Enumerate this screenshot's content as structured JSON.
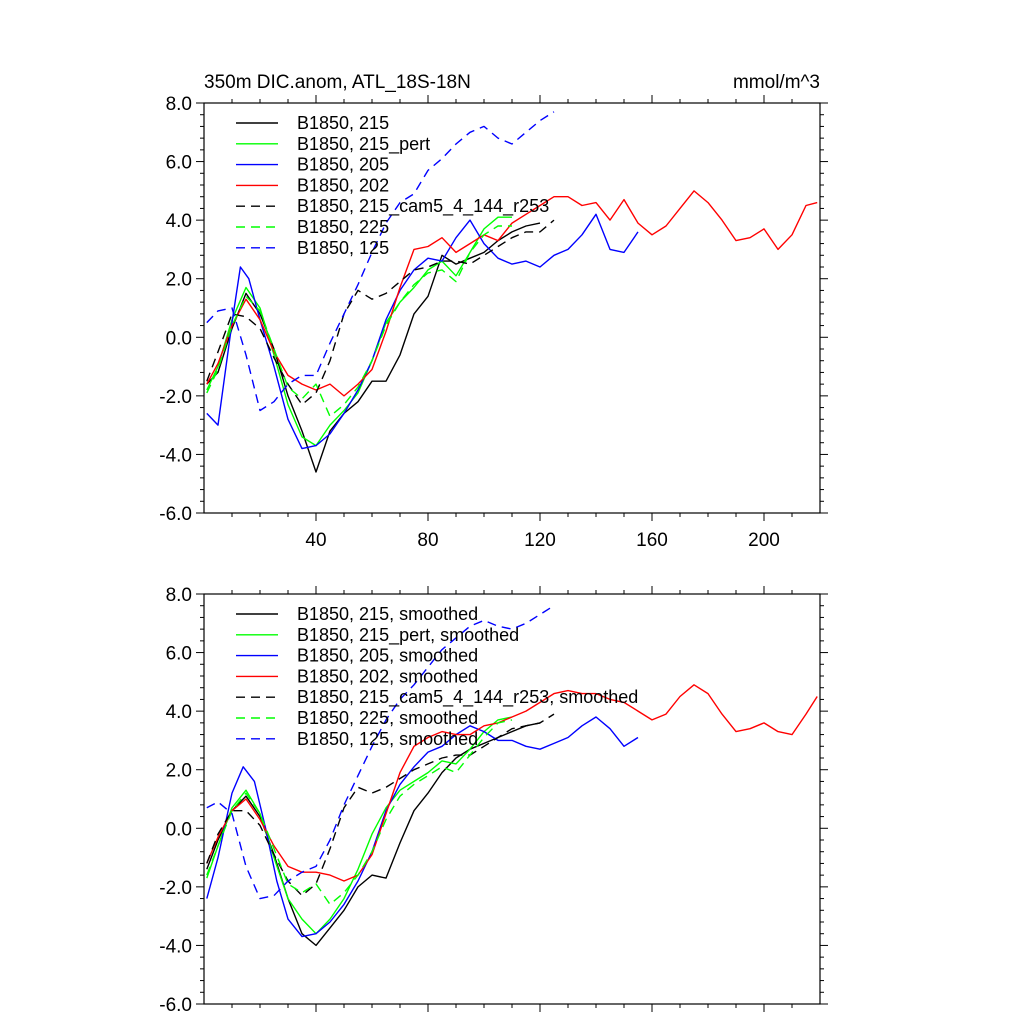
{
  "chart_data": [
    {
      "type": "line",
      "title": "350m DIC.anom, ATL_18S-18N",
      "units_label": "mmol/m^3",
      "xlabel": "",
      "ylabel": "",
      "xlim": [
        0,
        220
      ],
      "ylim": [
        -6,
        8
      ],
      "xticks": [
        40,
        80,
        120,
        160,
        200
      ],
      "xtick_labels": [
        "40",
        "80",
        "120",
        "160",
        "200"
      ],
      "yticks": [
        -6,
        -4,
        -2,
        0,
        2,
        4,
        6,
        8
      ],
      "ytick_labels": [
        "-6.0",
        "-4.0",
        "-2.0",
        "0.0",
        "2.0",
        "4.0",
        "6.0",
        "8.0"
      ],
      "legend_position": "top-left",
      "series": [
        {
          "name": "B1850, 215",
          "color": "#000000",
          "dash": "solid",
          "x": [
            1,
            5,
            10,
            15,
            20,
            25,
            30,
            35,
            40,
            45,
            50,
            55,
            60,
            65,
            70,
            75,
            80,
            85,
            90,
            95,
            100,
            105,
            110,
            115,
            120
          ],
          "y": [
            -1.6,
            -1.2,
            0.3,
            1.5,
            0.8,
            -0.4,
            -2.0,
            -3.2,
            -4.6,
            -3.2,
            -2.6,
            -2.2,
            -1.5,
            -1.5,
            -0.6,
            0.8,
            1.4,
            2.8,
            2.5,
            2.7,
            2.9,
            3.3,
            3.6,
            3.8,
            3.9
          ]
        },
        {
          "name": "B1850, 215_pert",
          "color": "#00ff00",
          "dash": "solid",
          "x": [
            1,
            5,
            10,
            15,
            20,
            25,
            30,
            35,
            40,
            45,
            50,
            55,
            60,
            65,
            70,
            75,
            80,
            85,
            90,
            95,
            100,
            105,
            110
          ],
          "y": [
            -1.8,
            -1.0,
            0.6,
            1.7,
            1.0,
            -0.6,
            -2.3,
            -3.4,
            -3.7,
            -3.0,
            -2.5,
            -1.9,
            -0.8,
            0.5,
            1.2,
            1.7,
            2.3,
            2.6,
            2.1,
            2.9,
            3.7,
            4.1,
            4.1
          ]
        },
        {
          "name": "B1850, 205",
          "color": "#0000ff",
          "dash": "solid",
          "x": [
            1,
            5,
            10,
            13,
            16,
            20,
            25,
            30,
            35,
            40,
            45,
            50,
            55,
            60,
            65,
            70,
            75,
            80,
            85,
            90,
            95,
            100,
            105,
            110,
            115,
            120,
            125,
            130,
            135,
            140,
            145,
            150,
            155
          ],
          "y": [
            -2.6,
            -3.0,
            0.5,
            2.4,
            2.0,
            0.6,
            -1.0,
            -2.8,
            -3.8,
            -3.7,
            -3.3,
            -2.6,
            -1.8,
            -0.8,
            0.6,
            1.6,
            2.3,
            2.7,
            2.6,
            3.4,
            4.0,
            3.2,
            2.7,
            2.5,
            2.6,
            2.4,
            2.8,
            3.0,
            3.5,
            4.2,
            3.0,
            2.9,
            3.6
          ]
        },
        {
          "name": "B1850, 202",
          "color": "#ff0000",
          "dash": "solid",
          "x": [
            1,
            5,
            10,
            15,
            20,
            25,
            30,
            35,
            40,
            45,
            50,
            55,
            60,
            65,
            70,
            75,
            80,
            85,
            90,
            95,
            100,
            105,
            110,
            115,
            120,
            125,
            130,
            135,
            140,
            145,
            150,
            155,
            160,
            165,
            170,
            175,
            180,
            185,
            190,
            195,
            200,
            205,
            210,
            215,
            219
          ],
          "y": [
            -1.6,
            -0.9,
            0.4,
            1.3,
            0.6,
            -0.5,
            -1.3,
            -1.6,
            -1.8,
            -1.6,
            -2.0,
            -1.6,
            -1.1,
            0.2,
            1.7,
            3.0,
            3.1,
            3.4,
            2.9,
            3.2,
            3.5,
            3.3,
            3.9,
            4.2,
            4.5,
            4.8,
            4.8,
            4.5,
            4.6,
            4.0,
            4.7,
            3.9,
            3.5,
            3.8,
            4.4,
            5.0,
            4.6,
            4.0,
            3.3,
            3.4,
            3.7,
            3.0,
            3.5,
            4.5,
            4.6
          ]
        },
        {
          "name": "B1850, 215_cam5_4_144_r253",
          "color": "#000000",
          "dash": "dashed",
          "x": [
            1,
            5,
            10,
            15,
            20,
            25,
            30,
            35,
            40,
            45,
            50,
            55,
            60,
            65,
            70,
            75,
            80,
            85,
            90,
            95,
            100,
            105,
            110,
            115,
            120,
            125
          ],
          "y": [
            -1.5,
            -0.5,
            0.8,
            0.7,
            0.3,
            -0.7,
            -1.6,
            -2.3,
            -1.9,
            -0.8,
            0.8,
            1.6,
            1.3,
            1.5,
            1.9,
            2.3,
            2.4,
            2.6,
            2.6,
            2.5,
            2.8,
            3.1,
            3.4,
            3.6,
            3.6,
            4.0
          ]
        },
        {
          "name": "B1850, 225",
          "color": "#00ff00",
          "dash": "dashed",
          "x": [
            1,
            5,
            10,
            15,
            20,
            25,
            30,
            35,
            40,
            45,
            50,
            55,
            60,
            65,
            70,
            75,
            80,
            85,
            90,
            95,
            100,
            105,
            110
          ],
          "y": [
            -1.9,
            -1.1,
            0.4,
            1.4,
            0.9,
            -0.4,
            -1.7,
            -2.1,
            -1.6,
            -2.7,
            -2.3,
            -1.7,
            -0.8,
            0.4,
            1.2,
            1.8,
            2.2,
            2.3,
            1.9,
            2.9,
            3.5,
            3.8,
            3.8
          ]
        },
        {
          "name": "B1850, 125",
          "color": "#0000ff",
          "dash": "dashed",
          "x": [
            1,
            5,
            10,
            15,
            20,
            25,
            30,
            35,
            40,
            45,
            50,
            55,
            60,
            65,
            70,
            75,
            80,
            85,
            90,
            95,
            100,
            105,
            110,
            115,
            120,
            125
          ],
          "y": [
            0.5,
            0.9,
            1.0,
            -0.6,
            -2.5,
            -2.2,
            -1.6,
            -1.3,
            -1.3,
            -0.2,
            0.8,
            1.8,
            2.9,
            3.9,
            4.6,
            4.9,
            5.7,
            6.1,
            6.6,
            7.0,
            7.2,
            6.8,
            6.6,
            7.0,
            7.4,
            7.7
          ]
        }
      ]
    },
    {
      "type": "line",
      "title": "",
      "xlabel": "",
      "ylabel": "",
      "xlim": [
        0,
        220
      ],
      "ylim": [
        -6,
        8
      ],
      "xticks": [
        40,
        80,
        120,
        160,
        200
      ],
      "xtick_labels": [],
      "yticks": [
        -6,
        -4,
        -2,
        0,
        2,
        4,
        6,
        8
      ],
      "ytick_labels": [
        "-6.0",
        "-4.0",
        "-2.0",
        "0.0",
        "2.0",
        "4.0",
        "6.0",
        "8.0"
      ],
      "legend_position": "top-left",
      "series": [
        {
          "name": "B1850, 215, smoothed",
          "color": "#000000",
          "dash": "solid",
          "x": [
            1,
            5,
            10,
            15,
            20,
            25,
            30,
            35,
            40,
            45,
            50,
            55,
            60,
            65,
            70,
            75,
            80,
            85,
            90,
            95,
            100,
            105,
            110,
            115,
            120
          ],
          "y": [
            -1.4,
            -0.4,
            0.6,
            1.1,
            0.4,
            -0.9,
            -2.4,
            -3.6,
            -4.0,
            -3.4,
            -2.8,
            -2.0,
            -1.6,
            -1.7,
            -0.5,
            0.6,
            1.2,
            1.9,
            2.4,
            2.7,
            2.9,
            3.1,
            3.3,
            3.5,
            3.6
          ]
        },
        {
          "name": "B1850, 215_pert, smoothed",
          "color": "#00ff00",
          "dash": "solid",
          "x": [
            1,
            5,
            10,
            15,
            20,
            25,
            30,
            35,
            40,
            45,
            50,
            55,
            60,
            65,
            70,
            75,
            80,
            85,
            90,
            95,
            100,
            105,
            110
          ],
          "y": [
            -1.7,
            -0.6,
            0.7,
            1.3,
            0.5,
            -1.0,
            -2.4,
            -3.1,
            -3.6,
            -3.1,
            -2.4,
            -1.4,
            -0.2,
            0.7,
            1.3,
            1.6,
            1.9,
            2.3,
            2.2,
            2.7,
            3.3,
            3.7,
            3.8
          ]
        },
        {
          "name": "B1850, 205, smoothed",
          "color": "#0000ff",
          "dash": "solid",
          "x": [
            1,
            5,
            10,
            14,
            18,
            22,
            26,
            30,
            35,
            40,
            45,
            50,
            55,
            60,
            65,
            70,
            75,
            80,
            85,
            90,
            95,
            100,
            105,
            110,
            115,
            120,
            125,
            130,
            135,
            140,
            145,
            150,
            155
          ],
          "y": [
            -2.4,
            -1.0,
            1.2,
            2.1,
            1.6,
            0.0,
            -1.8,
            -3.1,
            -3.7,
            -3.6,
            -3.2,
            -2.6,
            -1.8,
            -0.8,
            0.6,
            1.5,
            2.1,
            2.6,
            2.8,
            3.2,
            3.5,
            3.3,
            3.0,
            3.0,
            2.8,
            2.7,
            2.9,
            3.1,
            3.5,
            3.8,
            3.4,
            2.8,
            3.1
          ]
        },
        {
          "name": "B1850, 202, smoothed",
          "color": "#ff0000",
          "dash": "solid",
          "x": [
            1,
            5,
            10,
            15,
            20,
            25,
            30,
            35,
            40,
            45,
            50,
            55,
            60,
            65,
            70,
            75,
            80,
            85,
            90,
            95,
            100,
            105,
            110,
            115,
            120,
            125,
            130,
            135,
            140,
            145,
            150,
            155,
            160,
            165,
            170,
            175,
            180,
            185,
            190,
            195,
            200,
            205,
            210,
            215,
            219
          ],
          "y": [
            -1.2,
            -0.3,
            0.6,
            1.0,
            0.3,
            -0.6,
            -1.3,
            -1.5,
            -1.5,
            -1.6,
            -1.8,
            -1.6,
            -0.9,
            0.5,
            1.9,
            2.8,
            3.1,
            3.3,
            3.2,
            3.2,
            3.5,
            3.6,
            3.8,
            4.0,
            4.3,
            4.6,
            4.7,
            4.6,
            4.6,
            4.4,
            4.3,
            4.0,
            3.7,
            3.9,
            4.5,
            4.9,
            4.6,
            3.9,
            3.3,
            3.4,
            3.6,
            3.3,
            3.2,
            3.9,
            4.5
          ]
        },
        {
          "name": "B1850, 215_cam5_4_144_r253, smoothed",
          "color": "#000000",
          "dash": "dashed",
          "x": [
            1,
            5,
            10,
            15,
            20,
            25,
            30,
            35,
            40,
            45,
            50,
            55,
            60,
            65,
            70,
            75,
            80,
            85,
            90,
            95,
            100,
            105,
            110,
            115,
            120,
            125
          ],
          "y": [
            -1.2,
            -0.2,
            0.6,
            0.6,
            0.1,
            -0.9,
            -1.8,
            -2.3,
            -1.9,
            -0.7,
            0.7,
            1.4,
            1.2,
            1.4,
            1.7,
            2.0,
            2.2,
            2.4,
            2.5,
            2.5,
            2.8,
            3.1,
            3.4,
            3.5,
            3.6,
            3.9
          ]
        },
        {
          "name": "B1850, 225, smoothed",
          "color": "#00ff00",
          "dash": "dashed",
          "x": [
            1,
            5,
            10,
            15,
            20,
            25,
            30,
            35,
            40,
            45,
            50,
            55,
            60,
            65,
            70,
            75,
            80,
            85,
            90,
            95,
            100,
            105,
            110
          ],
          "y": [
            -1.6,
            -0.6,
            0.6,
            1.2,
            0.5,
            -0.7,
            -1.9,
            -2.2,
            -1.9,
            -2.6,
            -2.2,
            -1.6,
            -0.8,
            0.3,
            1.1,
            1.5,
            1.8,
            2.1,
            1.9,
            2.5,
            3.1,
            3.6,
            3.7
          ]
        },
        {
          "name": "B1850, 125, smoothed",
          "color": "#0000ff",
          "dash": "dashed",
          "x": [
            1,
            5,
            10,
            15,
            20,
            25,
            30,
            35,
            40,
            45,
            50,
            55,
            60,
            65,
            70,
            75,
            80,
            85,
            90,
            95,
            100,
            105,
            110,
            115,
            120,
            125
          ],
          "y": [
            0.7,
            0.9,
            0.5,
            -1.3,
            -2.4,
            -2.3,
            -1.8,
            -1.5,
            -1.3,
            -0.4,
            0.8,
            1.8,
            2.8,
            3.7,
            4.4,
            4.9,
            5.5,
            6.1,
            6.5,
            6.9,
            7.1,
            6.9,
            6.8,
            7.0,
            7.3,
            7.6
          ]
        }
      ]
    }
  ]
}
